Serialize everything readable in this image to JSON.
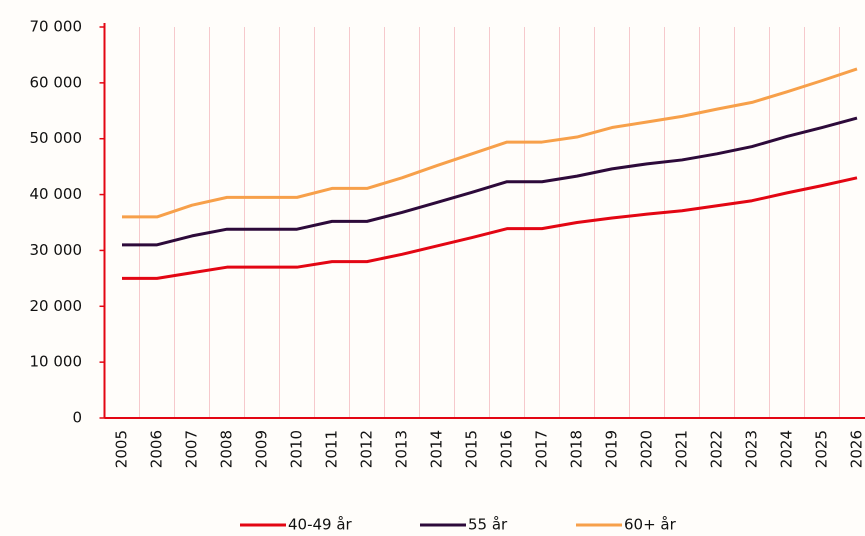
{
  "chart_data": {
    "type": "line",
    "categories": [
      "2005",
      "2006",
      "2007",
      "2008",
      "2009",
      "2010",
      "2011",
      "2012",
      "2013",
      "2014",
      "2015",
      "2016",
      "2017",
      "2018",
      "2019",
      "2020",
      "2021",
      "2022",
      "2023",
      "2024",
      "2025",
      "2026"
    ],
    "series": [
      {
        "name": "40-49 år",
        "color": "#e30613",
        "values": [
          25000,
          25000,
          26000,
          27000,
          27000,
          27000,
          28000,
          28000,
          29300,
          30800,
          32300,
          33900,
          33900,
          35000,
          35800,
          36500,
          37100,
          38000,
          38900,
          40300,
          41600,
          43000
        ]
      },
      {
        "name": "55 år",
        "color": "#2d0a3a",
        "values": [
          31000,
          31000,
          32600,
          33800,
          33800,
          33800,
          35200,
          35200,
          36800,
          38600,
          40400,
          42300,
          42300,
          43300,
          44600,
          45500,
          46200,
          47300,
          48600,
          50400,
          52000,
          53700
        ]
      },
      {
        "name": "60+ år",
        "color": "#f7a04a",
        "values": [
          36000,
          36000,
          38100,
          39500,
          39500,
          39500,
          41100,
          41100,
          43000,
          45200,
          47300,
          49400,
          49400,
          50300,
          52000,
          53000,
          54000,
          55300,
          56500,
          58400,
          60400,
          62500
        ]
      }
    ],
    "ylim": [
      0,
      70000
    ],
    "yticks": [
      0,
      {
        "value": 10000,
        "label": "10 000"
      },
      {
        "value": 20000,
        "label": "20 000"
      },
      {
        "value": 30000,
        "label": "30 000"
      },
      {
        "value": 40000,
        "label": "40 000"
      },
      {
        "value": 50000,
        "label": "50 000"
      },
      {
        "value": 60000,
        "label": "60 000"
      },
      {
        "value": 70000,
        "label": "70 000"
      }
    ],
    "grid": true,
    "legend": "bottom"
  }
}
